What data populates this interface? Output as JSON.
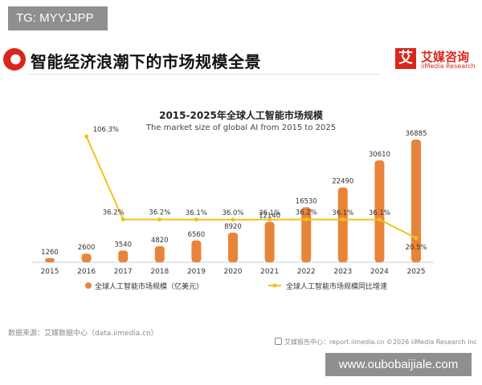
{
  "tag": "TG: MYYJJPP",
  "header": {
    "title": "智能经济浪潮下的市场规模全景"
  },
  "logo": {
    "mark": "艾",
    "name_cn": "艾媒咨询",
    "name_en": "iiMedia Research"
  },
  "chart_data": {
    "type": "bar",
    "title": "2015-2025年全球人工智能市场规模",
    "subtitle": "The market size of global AI from 2015 to 2025",
    "categories": [
      "2015",
      "2016",
      "2017",
      "2018",
      "2019",
      "2020",
      "2021",
      "2022",
      "2023",
      "2024",
      "2025"
    ],
    "series": [
      {
        "name": "全球人工智能市场规模（亿美元）",
        "type": "bar",
        "color": "#e8843a",
        "values": [
          1260,
          2600,
          3540,
          4820,
          6560,
          8920,
          12140,
          16530,
          22490,
          30610,
          36885
        ],
        "labels": [
          "1260",
          "2600",
          "3540",
          "4820",
          "6560",
          "8920",
          "12140",
          "16530",
          "22490",
          "30610",
          "36885"
        ]
      },
      {
        "name": "全球人工智能市场规模同比增速",
        "type": "line",
        "color": "#f2c11c",
        "values": [
          null,
          106.3,
          36.2,
          36.2,
          36.1,
          36.0,
          36.1,
          36.2,
          36.1,
          36.1,
          20.5
        ],
        "labels": [
          "",
          "106.3%",
          "36.2%",
          "36.2%",
          "36.1%",
          "36.0%",
          "36.1%",
          "36.2%",
          "36.1%",
          "36.1%",
          "20.5%"
        ]
      }
    ],
    "legend_position": "bottom",
    "grid": false
  },
  "footer": {
    "source": "数据来源：艾媒数据中心（data.iimedia.cn）",
    "report": "艾媒报告中心：report.iimedia.cn      ©2026  iiMedia Research  Inc"
  },
  "watermark": "www.oubobaijiale.com"
}
